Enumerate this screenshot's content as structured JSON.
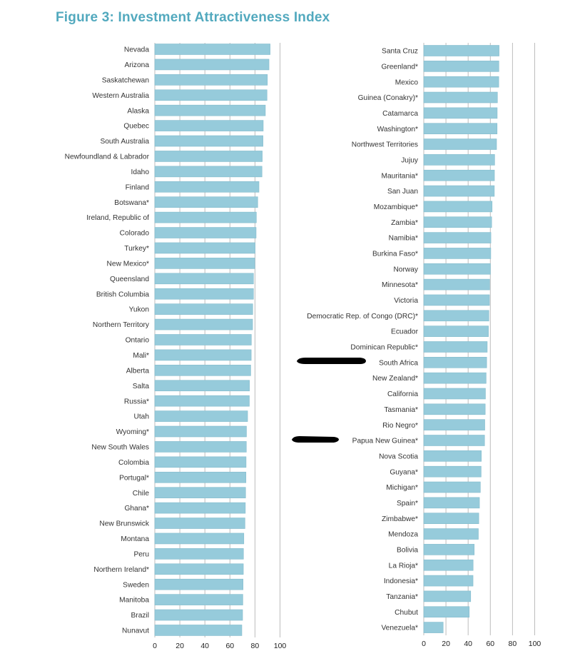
{
  "title": "Figure 3: Investment Attractiveness Index",
  "colors": {
    "bar": "#96cbdb",
    "bar_stroke": "#84bccd",
    "grid": "#bdbdbd",
    "title": "#52a9be"
  },
  "chart_data": [
    {
      "type": "bar",
      "orientation": "horizontal",
      "xlim": [
        0,
        100
      ],
      "xticks": [
        "0",
        "20",
        "40",
        "60",
        "80",
        "100"
      ],
      "grid": true,
      "categories": [
        "Nevada",
        "Arizona",
        "Saskatchewan",
        "Western Australia",
        "Alaska",
        "Quebec",
        "South Australia",
        "Newfoundland & Labrador",
        "Idaho",
        "Finland",
        "Botswana*",
        "Ireland, Republic of",
        "Colorado",
        "Turkey*",
        "New Mexico*",
        "Queensland",
        "British Columbia",
        "Yukon",
        "Northern Territory",
        "Ontario",
        "Mali*",
        "Alberta",
        "Salta",
        "Russia*",
        "Utah",
        "Wyoming*",
        "New South Wales",
        "Colombia",
        "Portugal*",
        "Chile",
        "Ghana*",
        "New Brunswick",
        "Montana",
        "Peru",
        "Northern Ireland*",
        "Sweden",
        "Manitoba",
        "Brazil",
        "Nunavut"
      ],
      "values": [
        92.1,
        91.2,
        89.9,
        89.6,
        88.3,
        86.6,
        86.4,
        85.8,
        85.6,
        83.2,
        82.2,
        81.1,
        80.9,
        80.1,
        79.9,
        78.8,
        78.8,
        78.2,
        78.1,
        77.1,
        77.0,
        76.6,
        75.6,
        75.5,
        74.1,
        73.2,
        73.1,
        72.9,
        72.8,
        72.5,
        72.3,
        72.0,
        71.1,
        70.8,
        70.7,
        70.5,
        70.3,
        70.1,
        69.5
      ]
    },
    {
      "type": "bar",
      "orientation": "horizontal",
      "xlim": [
        0,
        100
      ],
      "xticks": [
        "0",
        "20",
        "40",
        "60",
        "80",
        "100"
      ],
      "grid": true,
      "categories": [
        "Santa Cruz",
        "Greenland*",
        "Mexico",
        "Guinea (Conakry)*",
        "Catamarca",
        "Washington*",
        "Northwest Territories",
        "Jujuy",
        "Mauritania*",
        "San Juan",
        "Mozambique*",
        "Zambia*",
        "Namibia*",
        "Burkina Faso*",
        "Norway",
        "Minnesota*",
        "Victoria",
        "Democratic Rep. of Congo (DRC)*",
        "Ecuador",
        "Dominican Republic*",
        "South Africa",
        "New Zealand*",
        "California",
        "Tasmania*",
        "Rio Negro*",
        "Papua New Guinea*",
        "Nova Scotia",
        "Guyana*",
        "Michigan*",
        "Spain*",
        "Zimbabwe*",
        "Mendoza",
        "Bolivia",
        "La Rioja*",
        "Indonesia*",
        "Tanzania*",
        "Chubut",
        "Venezuela*"
      ],
      "values": [
        67.9,
        67.7,
        67.6,
        66.4,
        66.2,
        66.1,
        65.6,
        63.9,
        63.7,
        63.6,
        61.6,
        61.2,
        60.5,
        60.4,
        60.1,
        59.4,
        59.2,
        58.7,
        58.3,
        57.2,
        56.7,
        56.2,
        55.6,
        55.4,
        55.0,
        54.8,
        51.9,
        51.7,
        51.0,
        50.2,
        49.6,
        49.2,
        45.5,
        44.5,
        44.4,
        42.3,
        41.0,
        17.5
      ]
    }
  ]
}
